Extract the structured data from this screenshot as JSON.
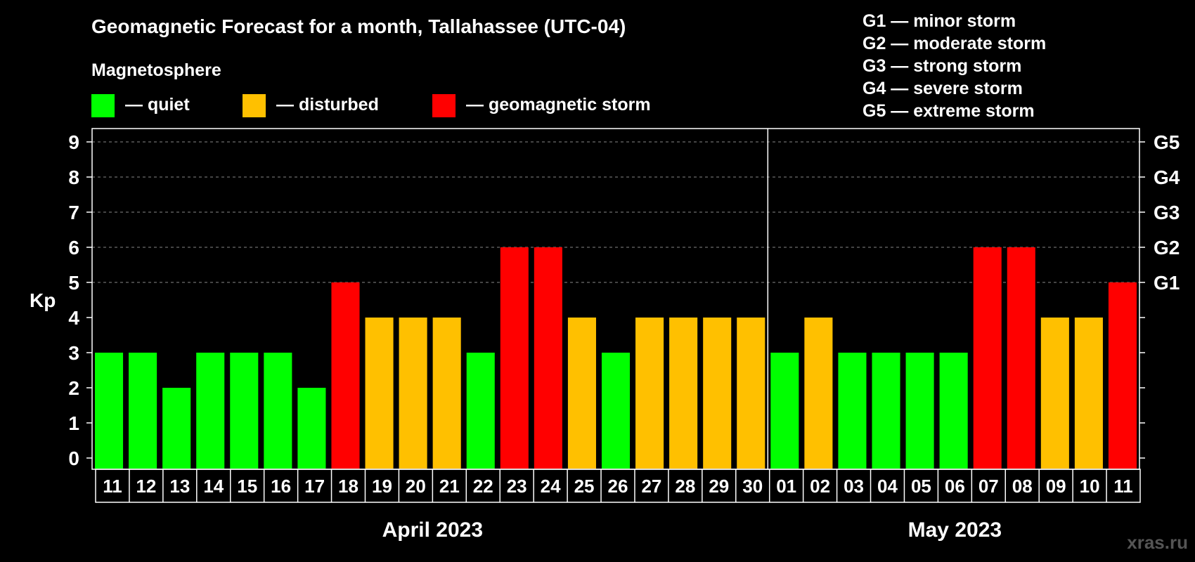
{
  "chart_data": {
    "type": "bar",
    "title": "Geomagnetic Forecast for a month, Tallahassee (UTC-04)",
    "ylabel": "Kp",
    "ylim": [
      0,
      9
    ],
    "yticks": [
      "0",
      "1",
      "2",
      "3",
      "4",
      "5",
      "6",
      "7",
      "8",
      "9"
    ],
    "right_axis_labels": [
      {
        "kp": 5,
        "label": "G1"
      },
      {
        "kp": 6,
        "label": "G2"
      },
      {
        "kp": 7,
        "label": "G3"
      },
      {
        "kp": 8,
        "label": "G4"
      },
      {
        "kp": 9,
        "label": "G5"
      }
    ],
    "legend": {
      "heading": "Magnetosphere",
      "items": [
        {
          "label": "— quiet",
          "color": "#00ff00"
        },
        {
          "label": "— disturbed",
          "color": "#ffc000"
        },
        {
          "label": "— geomagnetic storm",
          "color": "#ff0000"
        }
      ]
    },
    "storm_levels": [
      "G1 — minor storm",
      "G2 — moderate storm",
      "G3 — strong storm",
      "G4 — severe storm",
      "G5 — extreme storm"
    ],
    "categories": [
      "11",
      "12",
      "13",
      "14",
      "15",
      "16",
      "17",
      "18",
      "19",
      "20",
      "21",
      "22",
      "23",
      "24",
      "25",
      "26",
      "27",
      "28",
      "29",
      "30",
      "01",
      "02",
      "03",
      "04",
      "05",
      "06",
      "07",
      "08",
      "09",
      "10",
      "11"
    ],
    "values": [
      3,
      3,
      2,
      3,
      3,
      3,
      2,
      5,
      4,
      4,
      4,
      3,
      6,
      6,
      4,
      3,
      4,
      4,
      4,
      4,
      3,
      4,
      3,
      3,
      3,
      3,
      6,
      6,
      4,
      4,
      5
    ],
    "months": [
      {
        "label": "April 2023",
        "start": 0,
        "count": 20
      },
      {
        "label": "May 2023",
        "start": 20,
        "count": 11
      }
    ],
    "grid": true,
    "colors": {
      "quiet": "#00ff00",
      "disturbed": "#ffc000",
      "storm": "#ff0000"
    }
  },
  "watermark": "xras.ru"
}
